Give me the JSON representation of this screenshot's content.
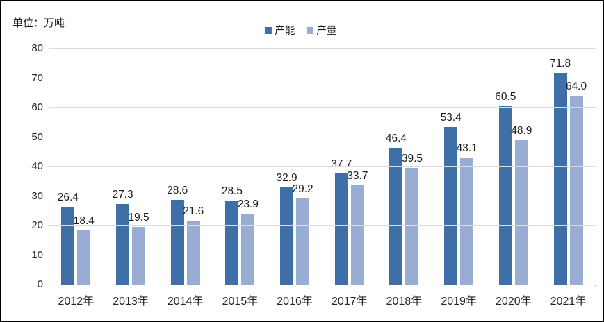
{
  "chart_data": {
    "type": "bar",
    "unit_label": "单位：万吨",
    "categories": [
      "2012年",
      "2013年",
      "2014年",
      "2015年",
      "2016年",
      "2017年",
      "2018年",
      "2019年",
      "2020年",
      "2021年"
    ],
    "series": [
      {
        "name": "产能",
        "color": "#3e6fa6",
        "values": [
          26.4,
          27.3,
          28.6,
          28.5,
          32.9,
          37.7,
          46.4,
          53.4,
          60.5,
          71.8
        ]
      },
      {
        "name": "产量",
        "color": "#98acd4",
        "values": [
          18.4,
          19.5,
          21.6,
          23.9,
          29.2,
          33.7,
          39.5,
          43.1,
          48.9,
          64.0
        ]
      }
    ],
    "y_axis": {
      "min": 0,
      "max": 80,
      "step": 10,
      "ticks": [
        0,
        10,
        20,
        30,
        40,
        50,
        60,
        70,
        80
      ]
    },
    "legend_position": "top-center",
    "grid": true,
    "value_labels": "one-decimal",
    "colors": {
      "gridline": "#dcdcdc",
      "axis_line": "#c3c3c9",
      "text": "#1a1a1a",
      "frame_border": "#000000",
      "background": "#ffffff"
    }
  }
}
